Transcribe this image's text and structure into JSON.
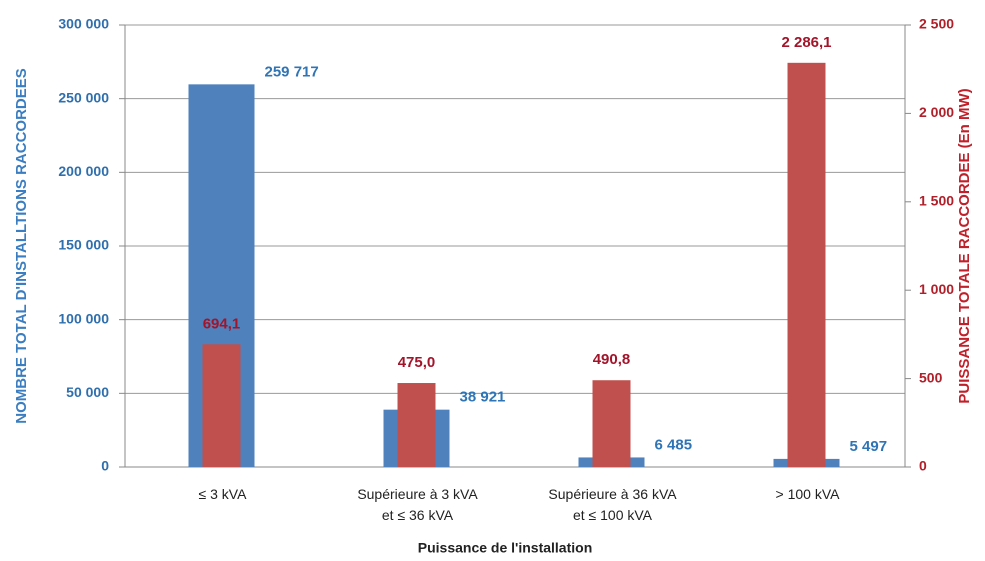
{
  "chart_data": {
    "type": "bar",
    "x_label": "Puissance de l'installation",
    "y_label": "NOMBRE TOTAL D'INSTALLTIONS RACCORDEES",
    "y2_label": "PUISSANCE TOTALE RACCORDEE (En MW)",
    "categories": [
      "≤ 3 kVA",
      "Supérieure à 3 kVA\net ≤ 36 kVA",
      "Supérieure à 36 kVA\net ≤ 100 kVA",
      "> 100 kVA"
    ],
    "series": [
      {
        "name": "Nombre total d'installations raccordées",
        "color": "#4f81bd",
        "values": [
          259717,
          38921,
          6485,
          5497
        ],
        "value_labels": [
          "259 717",
          "38 921",
          "6 485",
          "5 497"
        ]
      },
      {
        "name": "Puissance totale raccordée",
        "color": "#c0504d",
        "axis": "y2",
        "values": [
          694.1,
          475.0,
          490.8,
          2286.1
        ],
        "value_labels": [
          "694,1",
          "475,0",
          "490,8",
          "2 286,1"
        ]
      }
    ],
    "ylim": [
      0,
      300000
    ],
    "yticks": [
      0,
      {
        "value": 50000,
        "label": "50 000"
      },
      {
        "value": 100000,
        "label": "100 000"
      },
      {
        "value": 150000,
        "label": "150 000"
      },
      {
        "value": 200000,
        "label": "200 000"
      },
      {
        "value": 250000,
        "label": "250 000"
      },
      {
        "value": 300000,
        "label": "300 000"
      }
    ],
    "y2lim": [
      0,
      2500
    ],
    "y2ticks": [
      0,
      500,
      {
        "value": 1000,
        "label": "1 000"
      },
      {
        "value": 1500,
        "label": "1 500"
      },
      {
        "value": 2000,
        "label": "2 000"
      },
      {
        "value": 2500,
        "label": "2 500"
      }
    ],
    "grid": true
  }
}
